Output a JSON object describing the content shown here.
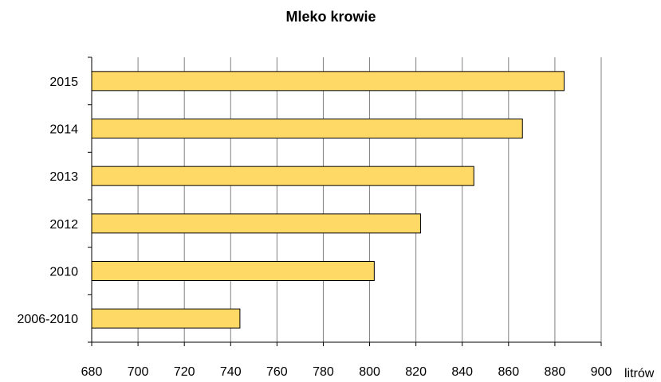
{
  "chart_data": {
    "type": "bar",
    "orientation": "horizontal",
    "title": "Mleko krowie",
    "xlabel": "litrów",
    "ylabel": "",
    "categories": [
      "2015",
      "2014",
      "2013",
      "2012",
      "2010",
      "2006-2010"
    ],
    "values": [
      884,
      866,
      845,
      822,
      802,
      744
    ],
    "xlim": [
      680,
      900
    ],
    "xticks": [
      "680",
      "700",
      "720",
      "740",
      "760",
      "780",
      "800",
      "820",
      "840",
      "860",
      "880",
      "900"
    ],
    "grid": true,
    "legend": "none",
    "colors": {
      "bar_fill": "#FFD966",
      "bar_stroke": "#000000",
      "grid": "#808080",
      "axis": "#000000"
    }
  }
}
